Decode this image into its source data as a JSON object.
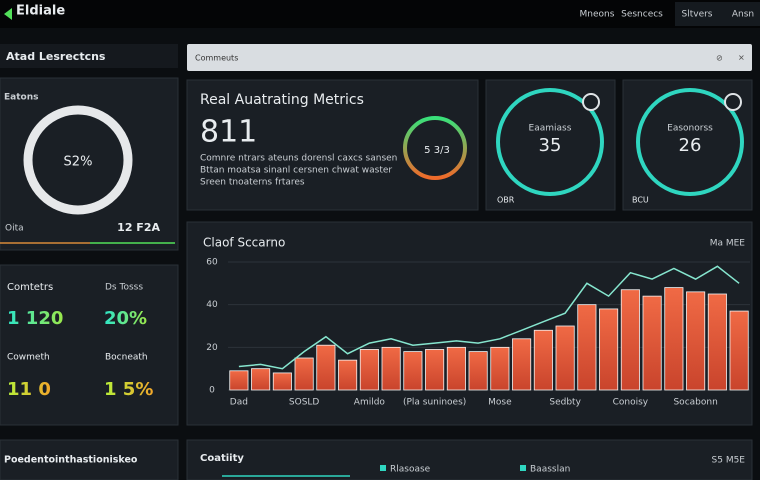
{
  "header": {
    "logo": "Eldiale",
    "nav": [
      "Mneons",
      "Sesncecs",
      "Sltvers",
      "Ansn"
    ]
  },
  "sidebar": {
    "title": "Atad Lesrectcns",
    "donut": {
      "label": "Eatons",
      "value": "S2%",
      "left": "Oita",
      "right": "12 F2A"
    },
    "stats": [
      {
        "label": "Comtetrs",
        "value": "1 120"
      },
      {
        "label": "Ds Tosss",
        "value": "20%"
      },
      {
        "label": "Cowmeth",
        "value": "11 0"
      },
      {
        "label": "Bocneath",
        "value": "1 5%"
      }
    ],
    "footer": "Poedentointhastioniskeo"
  },
  "search": {
    "placeholder": "Commeuts"
  },
  "metrics": {
    "title": "Real Auatrating Metrics",
    "value": "811",
    "gauge": "5 3/3",
    "lines": [
      "Comnre ntrars ateuns dorensl caxcs sansen",
      "Bttan moatsa sinanl cersnen chwat waster",
      "Sreen tnoaterns frtares"
    ]
  },
  "gauges": [
    {
      "label": "Eaamiass",
      "value": "35",
      "caption": "OBR"
    },
    {
      "label": "Easonorss",
      "value": "26",
      "caption": "BCU"
    }
  ],
  "chart_data": {
    "type": "bar",
    "title": "Claof Sccarno",
    "note": "Ma MEE",
    "categories": [
      "Dad",
      null,
      null,
      "SOSLD",
      null,
      null,
      "Amildo",
      null,
      null,
      "(Pla suninoes)",
      null,
      null,
      "Mose",
      null,
      null,
      "Sedbty",
      null,
      null,
      "Conoisy",
      null,
      null,
      "Socabonn",
      null,
      null
    ],
    "series": [
      {
        "type": "bar",
        "color": "#e4573b",
        "values": [
          9,
          10,
          8,
          15,
          21,
          14,
          19,
          20,
          18,
          19,
          20,
          18,
          20,
          24,
          28,
          30,
          40,
          38,
          47,
          44,
          48,
          46,
          45,
          37
        ]
      },
      {
        "type": "line",
        "color": "#86e6cf",
        "values": [
          11,
          12,
          10,
          18,
          25,
          17,
          22,
          24,
          21,
          22,
          23,
          22,
          24,
          28,
          32,
          36,
          50,
          44,
          55,
          52,
          57,
          52,
          58,
          50
        ]
      }
    ],
    "ylim": [
      0,
      60
    ],
    "yticks": [
      0,
      20,
      40,
      60
    ],
    "grid": true
  },
  "activity": {
    "title": "Coatiity",
    "legend": [
      "Rlasoase",
      "Baasslan"
    ],
    "note": "S5 M5E"
  }
}
